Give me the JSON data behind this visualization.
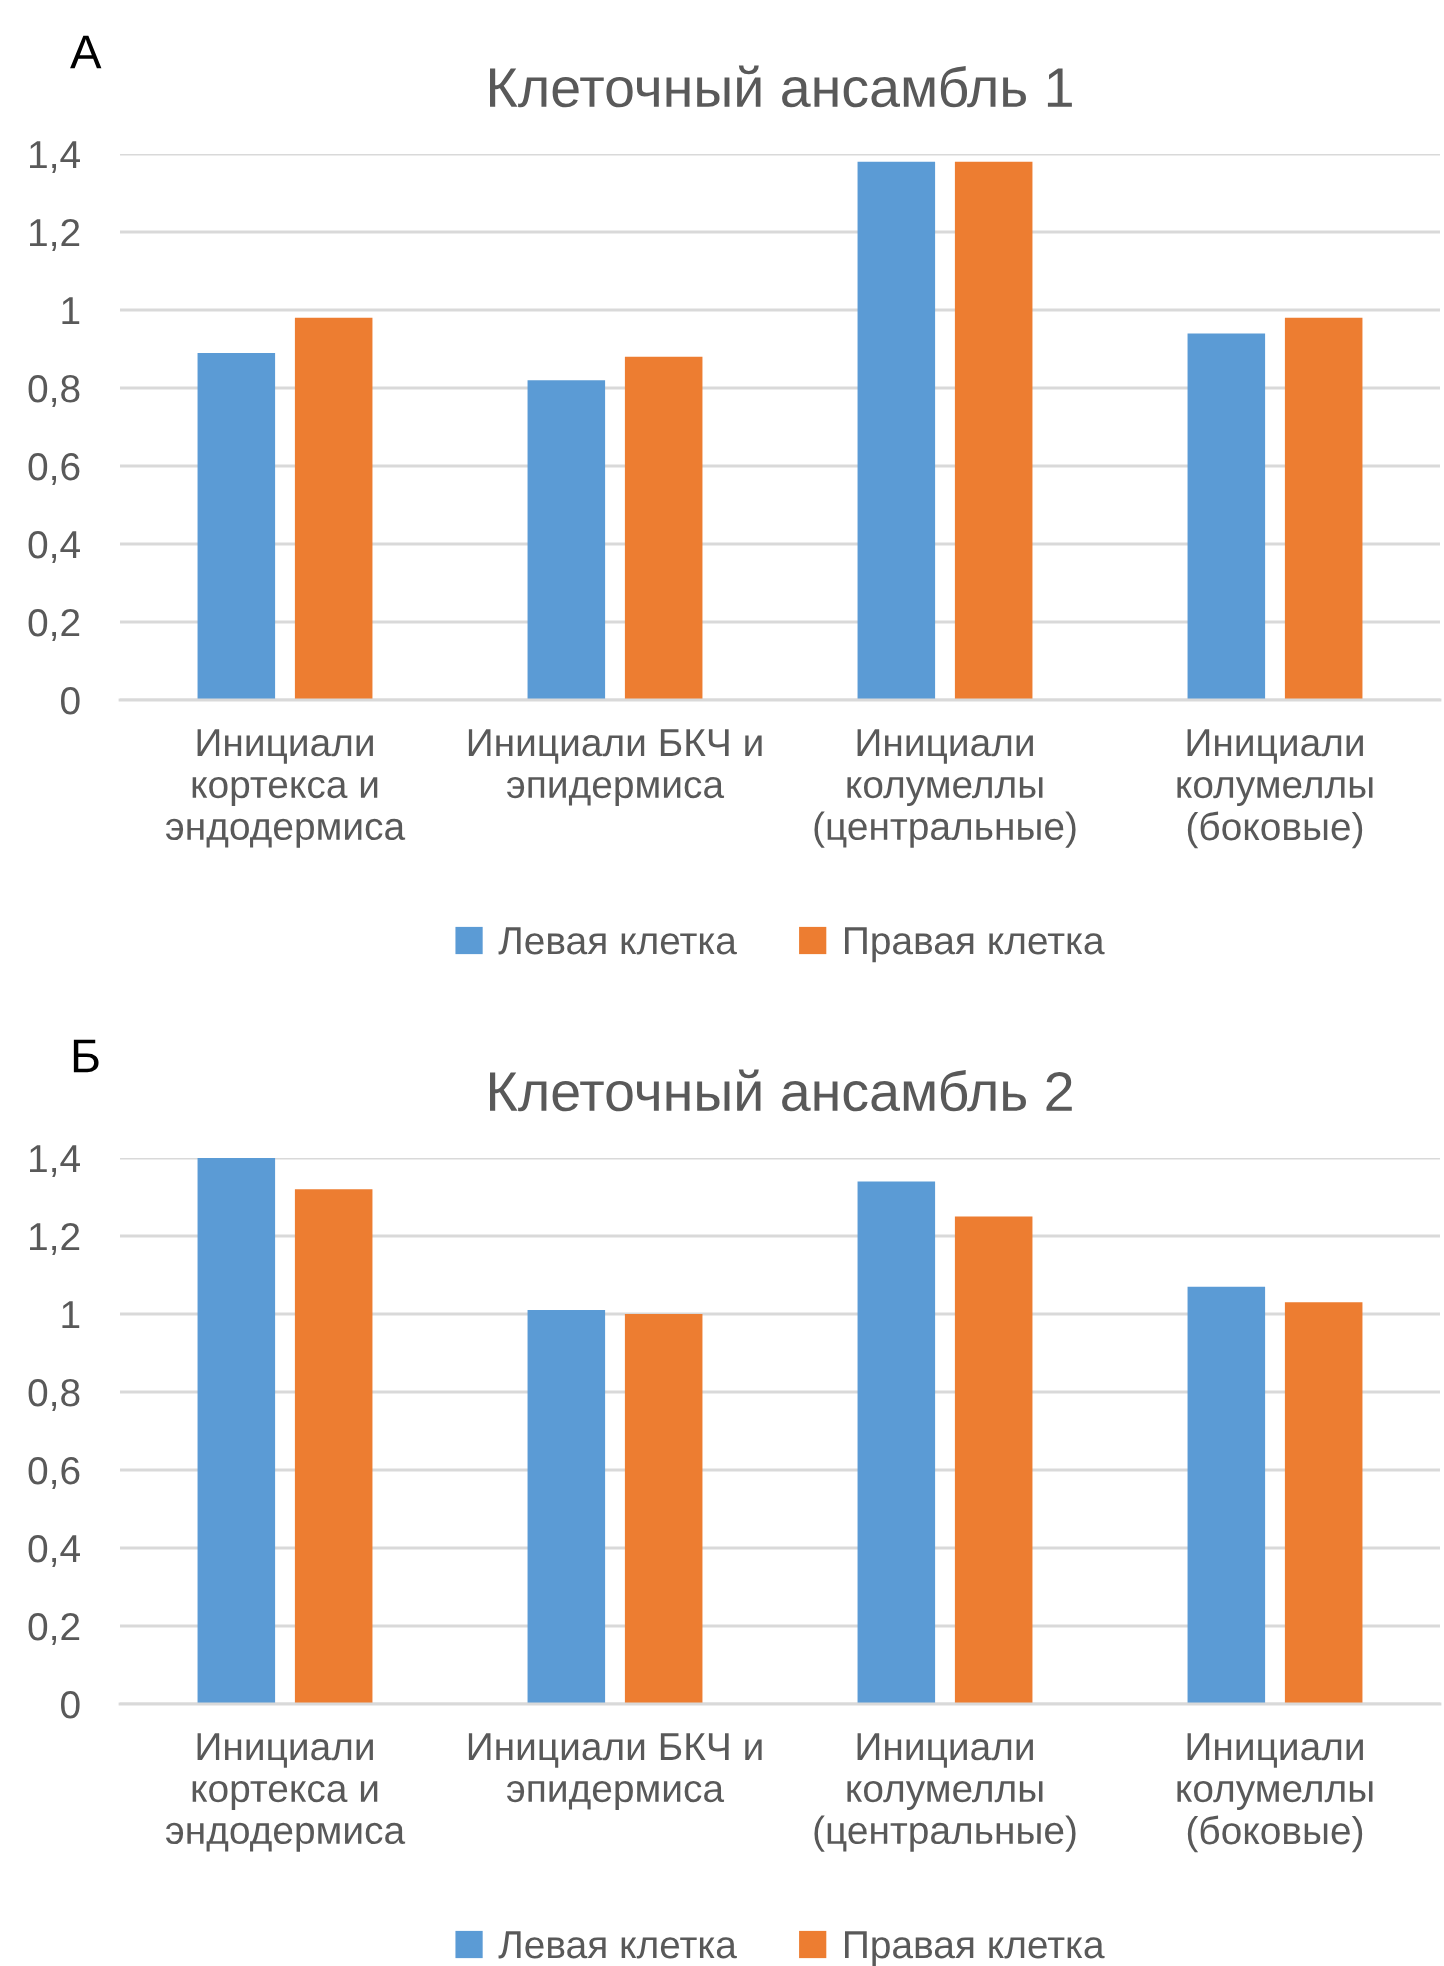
{
  "chart_data": [
    {
      "type": "bar",
      "title": "Клеточный ансамбль 1",
      "annotations": [
        "А"
      ],
      "categories": [
        "Инициали кортекса и эндодермиса",
        "Инициали БКЧ и эпидермиса",
        "Инициали колумеллы (центральные)",
        "Инициали колумеллы (боковые)"
      ],
      "series": [
        {
          "name": "Левая клетка",
          "color": "#5b9bd5",
          "values": [
            0.89,
            0.82,
            1.38,
            0.94
          ]
        },
        {
          "name": "Правая клетка",
          "color": "#ed7d31",
          "values": [
            0.98,
            0.88,
            1.38,
            0.98
          ]
        }
      ],
      "ylim": [
        0,
        1.4
      ],
      "yticks": [
        0,
        {
          "value": 0.2,
          "label": "0,2"
        },
        {
          "value": 0.4,
          "label": "0,4"
        },
        {
          "value": 0.6,
          "label": "0,6"
        },
        {
          "value": 0.8,
          "label": "0,8"
        },
        1,
        {
          "value": 1.2,
          "label": "1,2"
        },
        {
          "value": 1.4,
          "label": "1,4"
        }
      ],
      "grid": "y",
      "legend": "bottom"
    },
    {
      "type": "bar",
      "title": "Клеточный ансамбль 2",
      "annotations": [
        "Б"
      ],
      "categories": [
        "Инициали кортекса и эндодермиса",
        "Инициали БКЧ и эпидермиса",
        "Инициали колумеллы (центральные)",
        "Инициали колумеллы (боковые)"
      ],
      "series": [
        {
          "name": "Левая клетка",
          "color": "#5b9bd5",
          "values": [
            1.4,
            1.01,
            1.34,
            1.07
          ]
        },
        {
          "name": "Правая клетка",
          "color": "#ed7d31",
          "values": [
            1.32,
            1.0,
            1.25,
            1.03
          ]
        }
      ],
      "ylim": [
        0,
        1.4
      ],
      "yticks": [
        0,
        {
          "value": 0.2,
          "label": "0,2"
        },
        {
          "value": 0.4,
          "label": "0,4"
        },
        {
          "value": 0.6,
          "label": "0,6"
        },
        {
          "value": 0.8,
          "label": "0,8"
        },
        1,
        {
          "value": 1.2,
          "label": "1,2"
        },
        {
          "value": 1.4,
          "label": "1,4"
        }
      ],
      "grid": "y",
      "legend": "bottom"
    }
  ]
}
